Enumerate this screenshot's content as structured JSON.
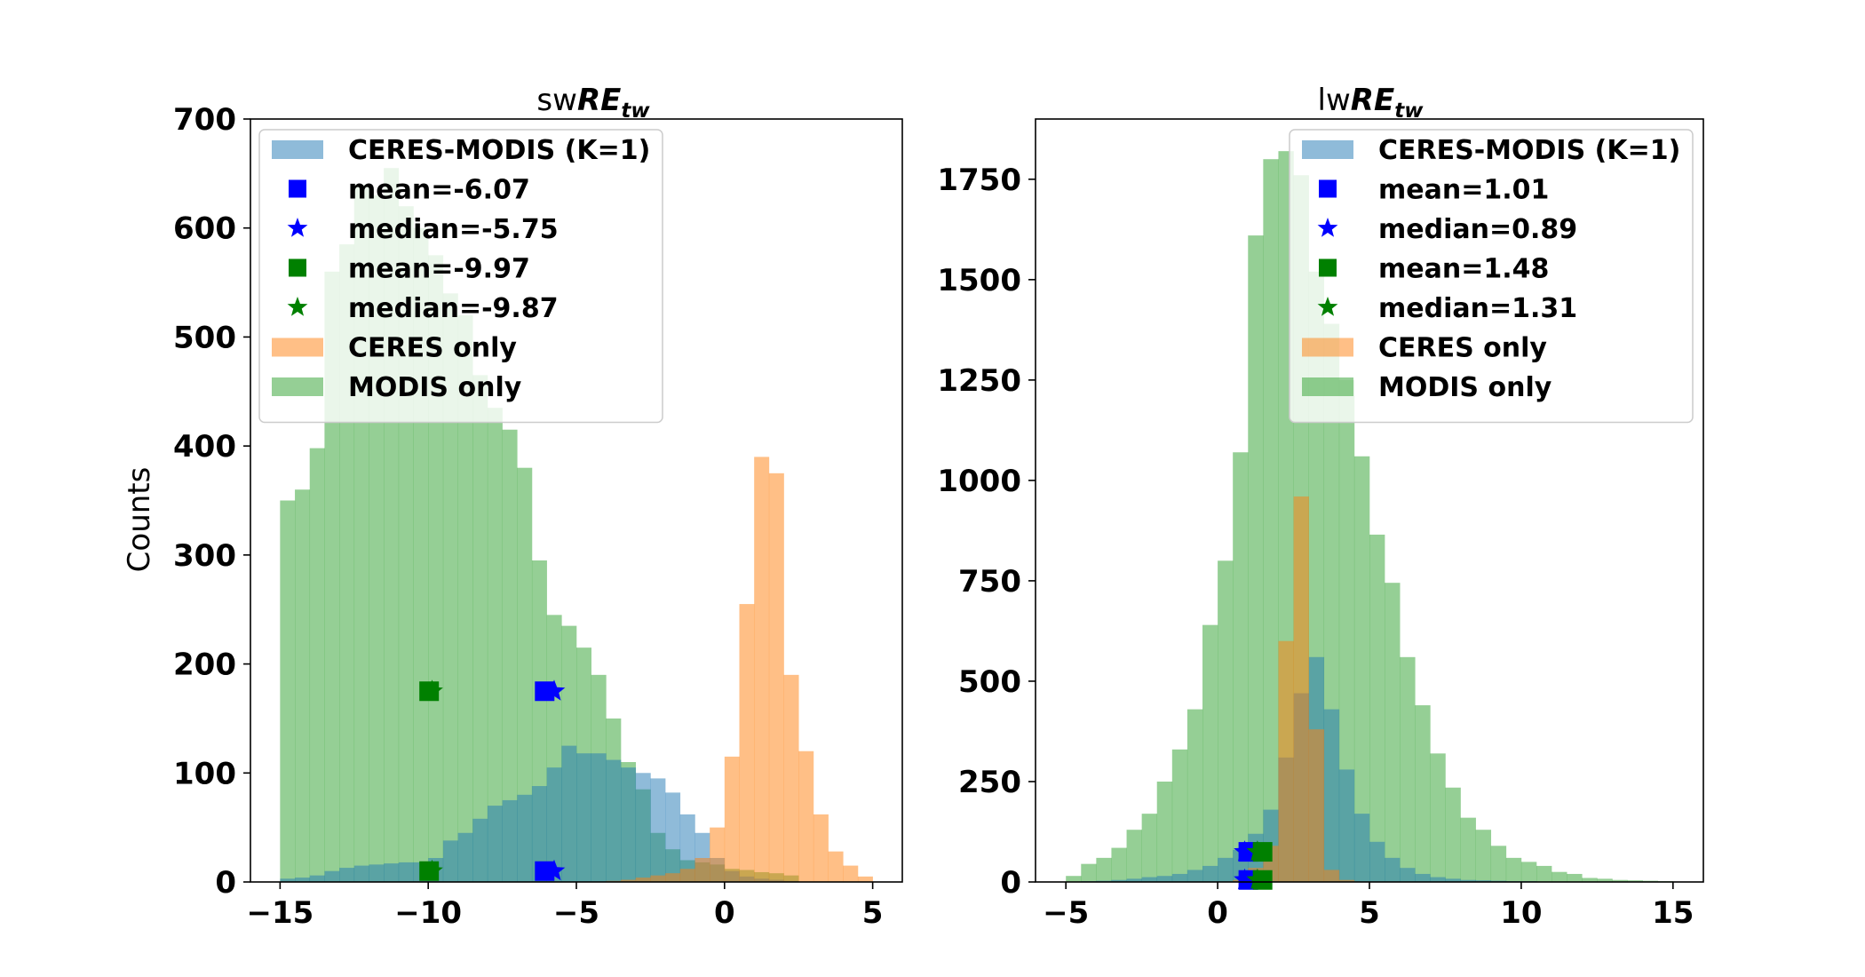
{
  "colors": {
    "ceres_modis": "#1f77b4",
    "ceres_only": "#ff7f0e",
    "modis_only": "#2ca02c",
    "mean_blue": "#0000ff",
    "mean_green": "#008000"
  },
  "chart_data": [
    {
      "type": "bar",
      "title_prefix": "sw",
      "title_main": "RE",
      "title_sub": "tw",
      "xlabel": "",
      "ylabel": "Counts",
      "xlim": [
        -16.0,
        6.0
      ],
      "ylim": [
        0,
        700
      ],
      "xticks": [
        -15,
        -10,
        -5,
        0,
        5
      ],
      "xtick_labels": [
        "−15",
        "−10",
        "−5",
        "0",
        "5"
      ],
      "yticks": [
        0,
        100,
        200,
        300,
        400,
        500,
        600,
        700
      ],
      "ytick_labels": [
        "0",
        "100",
        "200",
        "300",
        "400",
        "500",
        "600",
        "700"
      ],
      "bin_width": 0.5,
      "series": [
        {
          "name": "MODIS only",
          "color_key": "modis_only",
          "bin_start": -15.0,
          "counts": [
            350,
            360,
            398,
            560,
            585,
            640,
            630,
            655,
            620,
            600,
            575,
            540,
            520,
            465,
            435,
            415,
            380,
            295,
            245,
            235,
            215,
            190,
            150,
            110,
            85,
            45,
            30,
            20,
            18,
            16,
            12,
            11,
            9,
            8,
            6
          ]
        },
        {
          "name": "CERES-MODIS (K=1)",
          "color_key": "ceres_modis",
          "bin_start": -15.0,
          "counts": [
            3,
            4,
            6,
            10,
            13,
            15,
            16,
            17,
            18,
            18,
            22,
            38,
            45,
            58,
            70,
            75,
            80,
            88,
            105,
            125,
            118,
            118,
            112,
            105,
            100,
            95,
            82,
            62,
            45,
            22,
            10,
            5,
            3,
            2,
            1
          ]
        },
        {
          "name": "CERES only",
          "color_key": "ceres_only",
          "bin_start": -15.0,
          "counts": [
            0,
            0,
            0,
            0,
            0,
            0,
            0,
            0,
            0,
            0,
            0,
            0,
            0,
            0,
            0,
            0,
            0,
            0,
            0,
            0,
            0,
            0,
            1,
            2,
            4,
            6,
            8,
            12,
            22,
            50,
            115,
            255,
            390,
            375,
            190,
            120,
            62,
            28,
            15,
            5
          ]
        }
      ],
      "markers": [
        {
          "kind": "square",
          "color_key": "mean_blue",
          "x": -6.07,
          "y": 175
        },
        {
          "kind": "star",
          "color_key": "mean_blue",
          "x": -5.75,
          "y": 175
        },
        {
          "kind": "square",
          "color_key": "mean_green",
          "x": -9.97,
          "y": 175
        },
        {
          "kind": "star",
          "color_key": "mean_green",
          "x": -9.87,
          "y": 175
        },
        {
          "kind": "square",
          "color_key": "mean_blue",
          "x": -6.07,
          "y": 10
        },
        {
          "kind": "star",
          "color_key": "mean_blue",
          "x": -5.75,
          "y": 10
        },
        {
          "kind": "square",
          "color_key": "mean_green",
          "x": -9.97,
          "y": 10
        },
        {
          "kind": "star",
          "color_key": "mean_green",
          "x": -9.87,
          "y": 10
        }
      ],
      "legend": {
        "placement": "upper-left",
        "entries": [
          {
            "kind": "patch",
            "color_key": "ceres_modis",
            "label": "CERES-MODIS (K=1)"
          },
          {
            "kind": "square",
            "color_key": "mean_blue",
            "label": "mean=-6.07"
          },
          {
            "kind": "star",
            "color_key": "mean_blue",
            "label": "median=-5.75"
          },
          {
            "kind": "square",
            "color_key": "mean_green",
            "label": "mean=-9.97"
          },
          {
            "kind": "star",
            "color_key": "mean_green",
            "label": "median=-9.87"
          },
          {
            "kind": "patch",
            "color_key": "ceres_only",
            "label": "CERES only"
          },
          {
            "kind": "patch",
            "color_key": "modis_only",
            "label": "MODIS only"
          }
        ]
      }
    },
    {
      "type": "bar",
      "title_prefix": "lw",
      "title_main": "RE",
      "title_sub": "tw",
      "xlabel": "",
      "ylabel": "",
      "xlim": [
        -6.0,
        16.0
      ],
      "ylim": [
        0,
        1900
      ],
      "xticks": [
        -5,
        0,
        5,
        10,
        15
      ],
      "xtick_labels": [
        "−5",
        "0",
        "5",
        "10",
        "15"
      ],
      "yticks": [
        0,
        250,
        500,
        750,
        1000,
        1250,
        1500,
        1750
      ],
      "ytick_labels": [
        "0",
        "250",
        "500",
        "750",
        "1000",
        "1250",
        "1500",
        "1750"
      ],
      "bin_width": 0.5,
      "series": [
        {
          "name": "MODIS only",
          "color_key": "modis_only",
          "bin_start": -5.0,
          "counts": [
            15,
            45,
            60,
            85,
            130,
            170,
            250,
            330,
            430,
            640,
            800,
            1070,
            1610,
            1800,
            1820,
            1760,
            1520,
            1390,
            1250,
            1060,
            865,
            745,
            560,
            440,
            320,
            235,
            160,
            130,
            90,
            60,
            50,
            40,
            25,
            20,
            10,
            8,
            5,
            4,
            3,
            2,
            1,
            1,
            1,
            1,
            1,
            1,
            1,
            1,
            0,
            0,
            0,
            0,
            0,
            0,
            0,
            0,
            0,
            1,
            0,
            0
          ]
        },
        {
          "name": "CERES-MODIS (K=1)",
          "color_key": "ceres_modis",
          "bin_start": -5.0,
          "counts": [
            0,
            2,
            3,
            5,
            8,
            12,
            15,
            20,
            30,
            40,
            60,
            80,
            120,
            180,
            310,
            470,
            560,
            430,
            280,
            170,
            100,
            60,
            35,
            20,
            12,
            8,
            5,
            4,
            3,
            2,
            2,
            1,
            1,
            1,
            1
          ]
        },
        {
          "name": "CERES only",
          "color_key": "ceres_only",
          "bin_start": -5.0,
          "counts": [
            0,
            0,
            0,
            0,
            0,
            0,
            0,
            0,
            0,
            0,
            1,
            5,
            35,
            90,
            600,
            960,
            380,
            30,
            5,
            1,
            0,
            0,
            0,
            0,
            0,
            0,
            0,
            0,
            0,
            0
          ]
        }
      ],
      "markers": [
        {
          "kind": "square",
          "color_key": "mean_blue",
          "x": 1.01,
          "y": 75
        },
        {
          "kind": "star",
          "color_key": "mean_blue",
          "x": 0.89,
          "y": 75
        },
        {
          "kind": "square",
          "color_key": "mean_green",
          "x": 1.48,
          "y": 75
        },
        {
          "kind": "star",
          "color_key": "mean_green",
          "x": 1.31,
          "y": 75
        },
        {
          "kind": "square",
          "color_key": "mean_blue",
          "x": 1.01,
          "y": 5
        },
        {
          "kind": "star",
          "color_key": "mean_blue",
          "x": 0.89,
          "y": 5
        },
        {
          "kind": "square",
          "color_key": "mean_green",
          "x": 1.48,
          "y": 5
        },
        {
          "kind": "star",
          "color_key": "mean_green",
          "x": 1.31,
          "y": 5
        }
      ],
      "legend": {
        "placement": "upper-right",
        "entries": [
          {
            "kind": "patch",
            "color_key": "ceres_modis",
            "label": "CERES-MODIS (K=1)"
          },
          {
            "kind": "square",
            "color_key": "mean_blue",
            "label": "mean=1.01"
          },
          {
            "kind": "star",
            "color_key": "mean_blue",
            "label": "median=0.89"
          },
          {
            "kind": "square",
            "color_key": "mean_green",
            "label": "mean=1.48"
          },
          {
            "kind": "star",
            "color_key": "mean_green",
            "label": "median=1.31"
          },
          {
            "kind": "patch",
            "color_key": "ceres_only",
            "label": "CERES only"
          },
          {
            "kind": "patch",
            "color_key": "modis_only",
            "label": "MODIS only"
          }
        ]
      }
    }
  ]
}
